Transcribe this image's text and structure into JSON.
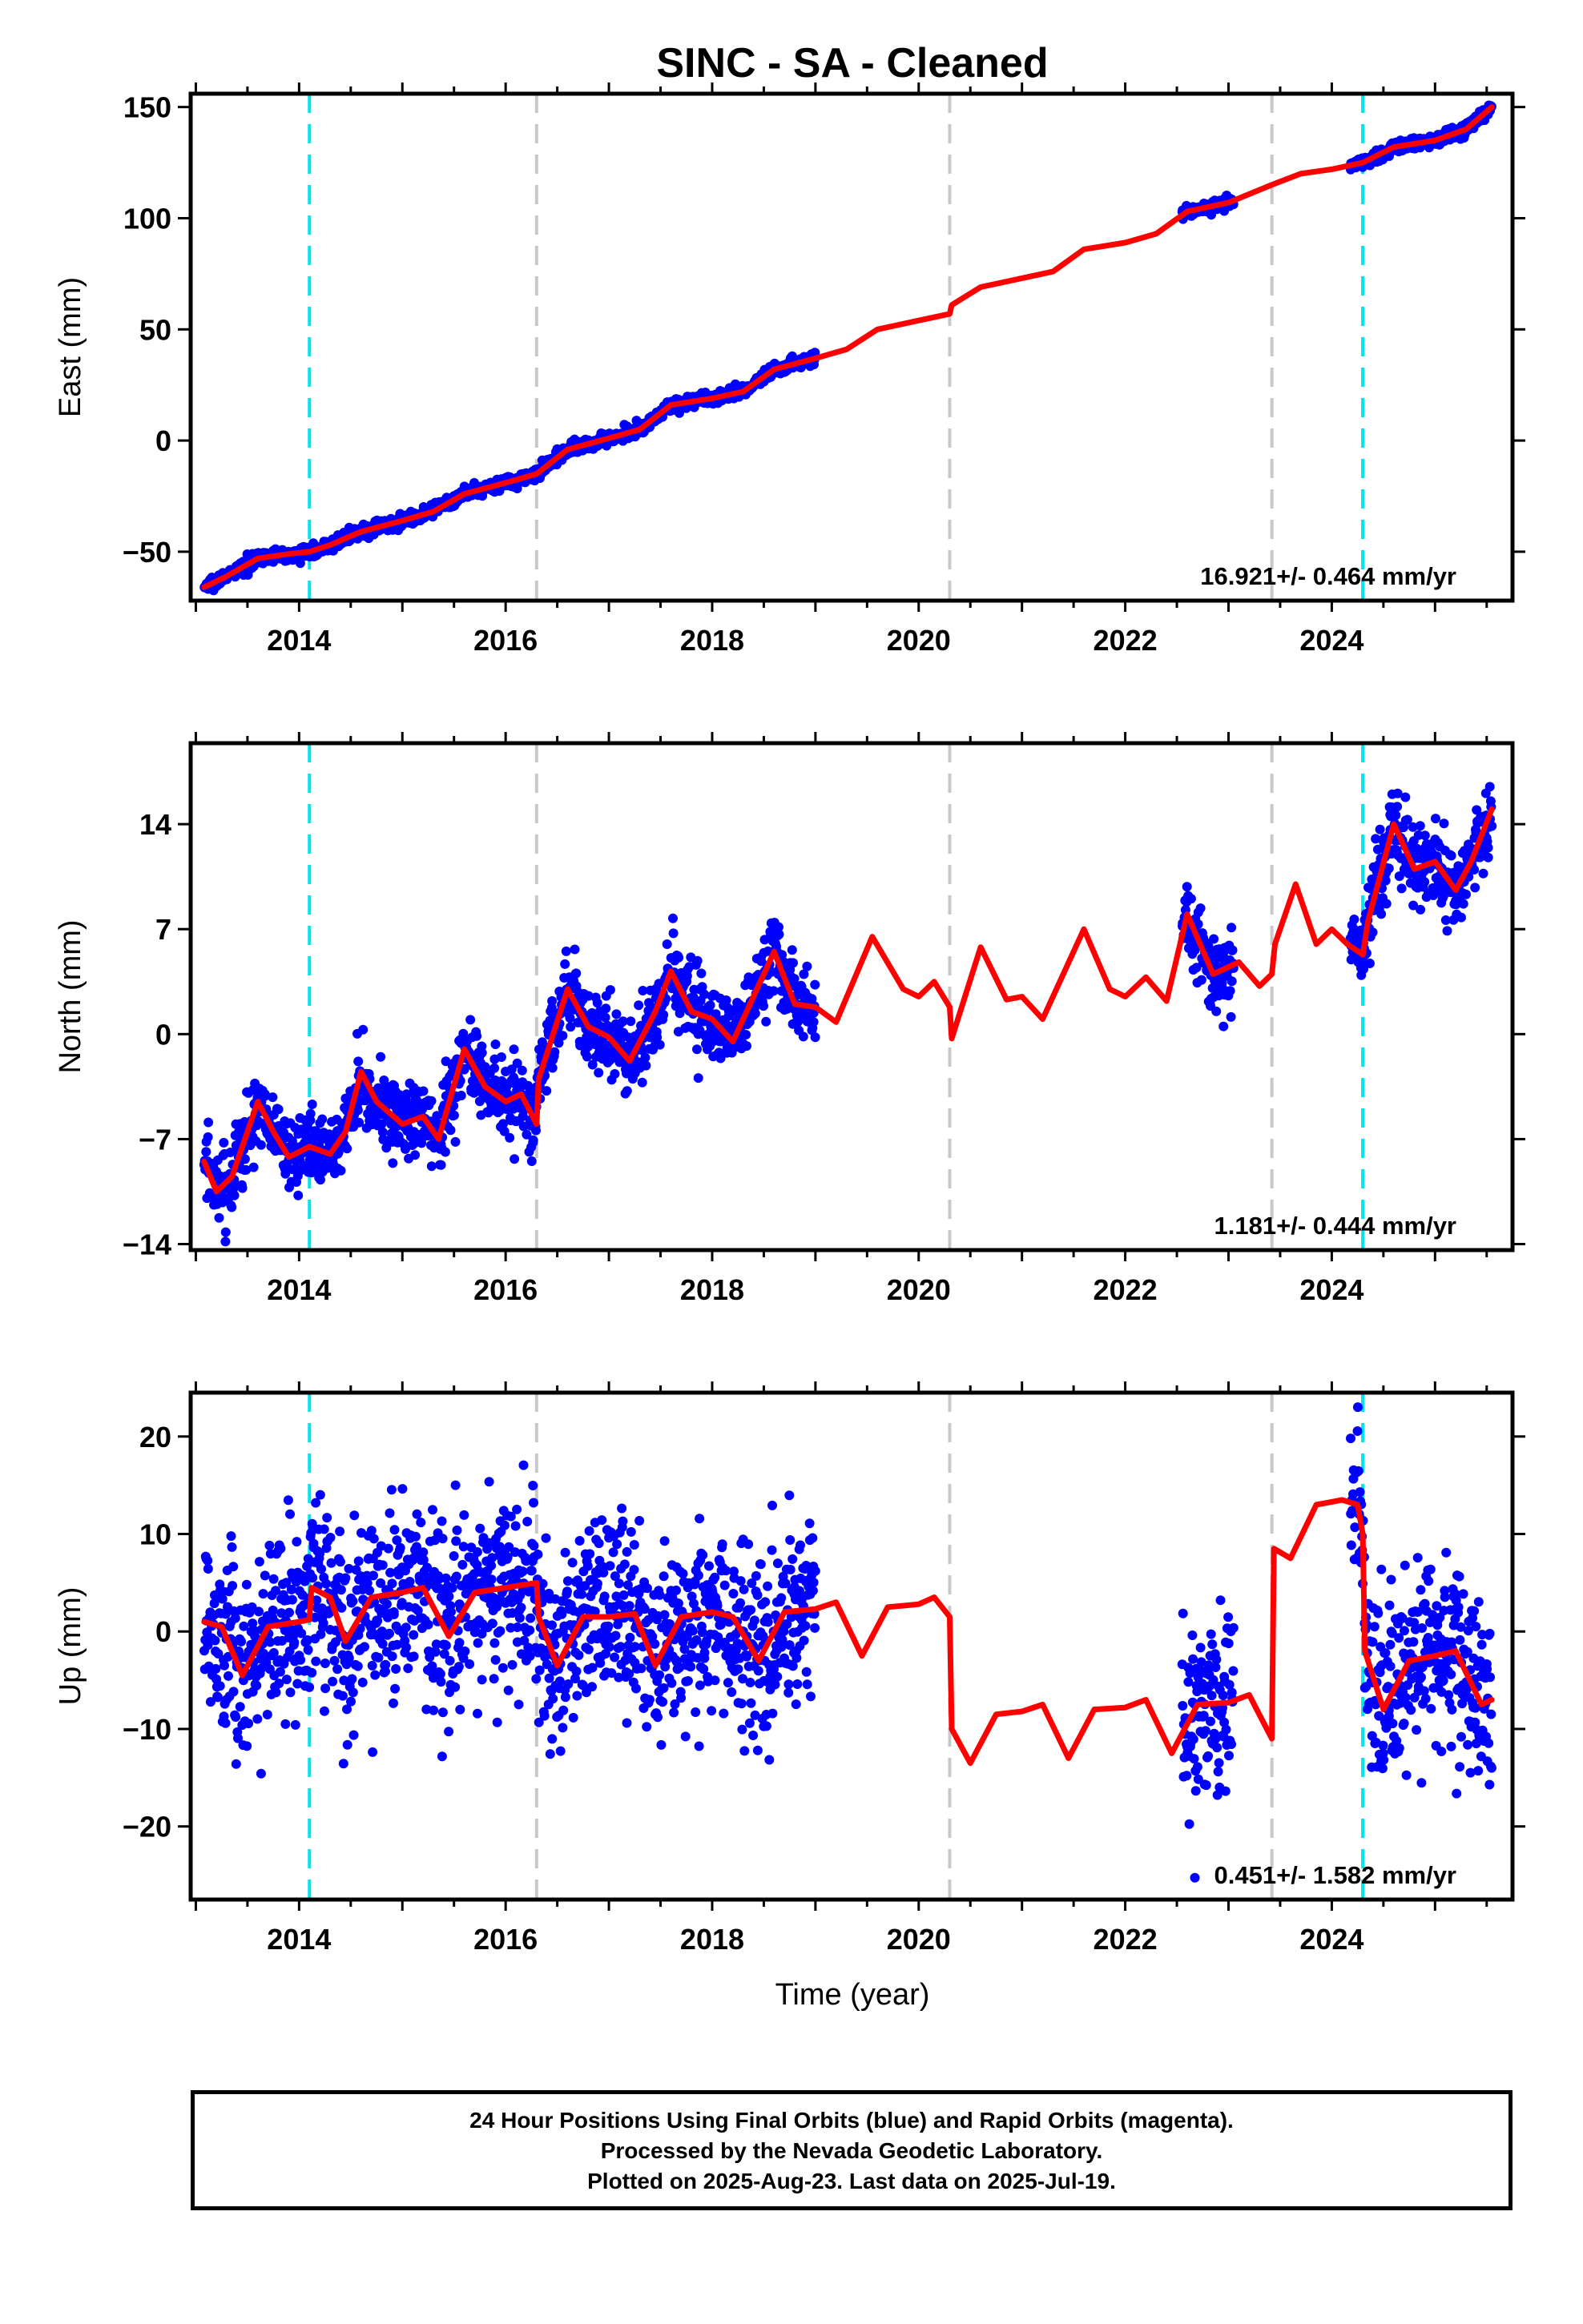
{
  "title": "SINC  - SA - Cleaned",
  "xlabel": "Time (year)",
  "footer": {
    "line1": "24 Hour Positions Using Final Orbits (blue) and Rapid Orbits (magenta).",
    "line2": "Processed by the Nevada Geodetic Laboratory.",
    "line3": "Plotted on 2025-Aug-23. Last data on 2025-Jul-19."
  },
  "colors": {
    "observed": "#0000ff",
    "model": "#ff0000",
    "equipment_change": "#c8c8c8",
    "earthquake": "#00e5ee"
  },
  "chart_data": [
    {
      "type": "scatter",
      "panel": "east",
      "ylabel": "East (mm)",
      "xlim": [
        2012.95,
        2025.75
      ],
      "ylim": [
        -72,
        156
      ],
      "xticks": [
        2014,
        2016,
        2018,
        2020,
        2022,
        2024
      ],
      "yticks": [
        -50,
        0,
        50,
        100,
        150
      ],
      "rate_label": "16.921+/- 0.464 mm/yr",
      "vertical_lines": [
        {
          "x": 2014.1,
          "kind": "earthquake"
        },
        {
          "x": 2016.3,
          "kind": "equipment_change"
        },
        {
          "x": 2020.3,
          "kind": "equipment_change"
        },
        {
          "x": 2023.42,
          "kind": "equipment_change"
        },
        {
          "x": 2024.3,
          "kind": "earthquake"
        }
      ],
      "data_segments": [
        [
          2013.08,
          2019.0
        ],
        [
          2022.55,
          2023.05
        ],
        [
          2024.18,
          2025.55
        ]
      ],
      "scatter_sd": 1.4,
      "model": [
        [
          2013.08,
          -66
        ],
        [
          2013.3,
          -61
        ],
        [
          2013.6,
          -53
        ],
        [
          2013.9,
          -51
        ],
        [
          2014.1,
          -50
        ],
        [
          2014.3,
          -47
        ],
        [
          2014.6,
          -41
        ],
        [
          2015.0,
          -36
        ],
        [
          2015.3,
          -32
        ],
        [
          2015.6,
          -24
        ],
        [
          2016.0,
          -19
        ],
        [
          2016.3,
          -15
        ],
        [
          2016.6,
          -4
        ],
        [
          2017.0,
          1
        ],
        [
          2017.3,
          5
        ],
        [
          2017.6,
          16
        ],
        [
          2018.0,
          19
        ],
        [
          2018.3,
          22
        ],
        [
          2018.6,
          32
        ],
        [
          2019.0,
          37
        ],
        [
          2019.3,
          41
        ],
        [
          2019.6,
          50
        ],
        [
          2020.0,
          54
        ],
        [
          2020.3,
          57
        ],
        [
          2020.32,
          61
        ],
        [
          2020.6,
          69
        ],
        [
          2021.0,
          73
        ],
        [
          2021.3,
          76
        ],
        [
          2021.6,
          86
        ],
        [
          2022.0,
          89
        ],
        [
          2022.3,
          93
        ],
        [
          2022.6,
          103
        ],
        [
          2023.0,
          107
        ],
        [
          2023.42,
          115
        ],
        [
          2023.7,
          120
        ],
        [
          2024.0,
          122
        ],
        [
          2024.3,
          125
        ],
        [
          2024.6,
          132
        ],
        [
          2025.0,
          135
        ],
        [
          2025.3,
          140
        ],
        [
          2025.55,
          150
        ]
      ]
    },
    {
      "type": "scatter",
      "panel": "north",
      "ylabel": "North (mm)",
      "xlim": [
        2012.95,
        2025.75
      ],
      "ylim": [
        -14.4,
        19.4
      ],
      "xticks": [
        2014,
        2016,
        2018,
        2020,
        2022,
        2024
      ],
      "yticks": [
        -14,
        -7,
        0,
        7,
        14
      ],
      "rate_label": "1.181+/- 0.444 mm/yr",
      "vertical_lines": [
        {
          "x": 2014.1,
          "kind": "earthquake"
        },
        {
          "x": 2016.3,
          "kind": "equipment_change"
        },
        {
          "x": 2020.3,
          "kind": "equipment_change"
        },
        {
          "x": 2023.42,
          "kind": "equipment_change"
        },
        {
          "x": 2024.3,
          "kind": "earthquake"
        }
      ],
      "data_segments": [
        [
          2013.08,
          2019.0
        ],
        [
          2022.55,
          2023.05
        ],
        [
          2024.18,
          2025.55
        ]
      ],
      "scatter_sd": 1.3,
      "model": [
        [
          2013.08,
          -8.5
        ],
        [
          2013.2,
          -10.5
        ],
        [
          2013.35,
          -9.5
        ],
        [
          2013.6,
          -4.5
        ],
        [
          2013.75,
          -6.5
        ],
        [
          2013.9,
          -8.2
        ],
        [
          2014.1,
          -7.5
        ],
        [
          2014.3,
          -8.0
        ],
        [
          2014.45,
          -6.5
        ],
        [
          2014.6,
          -2.5
        ],
        [
          2014.75,
          -4.5
        ],
        [
          2015.0,
          -6.0
        ],
        [
          2015.2,
          -5.5
        ],
        [
          2015.35,
          -7.0
        ],
        [
          2015.6,
          -1.0
        ],
        [
          2015.8,
          -3.5
        ],
        [
          2016.0,
          -4.5
        ],
        [
          2016.15,
          -4.0
        ],
        [
          2016.3,
          -6.0
        ],
        [
          2016.32,
          -3.0
        ],
        [
          2016.6,
          3.0
        ],
        [
          2016.8,
          0.5
        ],
        [
          2017.0,
          -0.2
        ],
        [
          2017.2,
          -1.8
        ],
        [
          2017.45,
          1.5
        ],
        [
          2017.6,
          4.2
        ],
        [
          2017.8,
          1.5
        ],
        [
          2018.0,
          1.0
        ],
        [
          2018.2,
          -0.5
        ],
        [
          2018.4,
          2.5
        ],
        [
          2018.6,
          5.5
        ],
        [
          2018.8,
          2.0
        ],
        [
          2019.0,
          1.8
        ],
        [
          2019.2,
          0.8
        ],
        [
          2019.55,
          6.5
        ],
        [
          2019.85,
          3.0
        ],
        [
          2020.0,
          2.5
        ],
        [
          2020.15,
          3.5
        ],
        [
          2020.3,
          1.8
        ],
        [
          2020.32,
          -0.3
        ],
        [
          2020.6,
          5.8
        ],
        [
          2020.85,
          2.3
        ],
        [
          2021.0,
          2.5
        ],
        [
          2021.2,
          1.0
        ],
        [
          2021.6,
          7.0
        ],
        [
          2021.85,
          3.0
        ],
        [
          2022.0,
          2.5
        ],
        [
          2022.2,
          3.8
        ],
        [
          2022.4,
          2.2
        ],
        [
          2022.6,
          8.0
        ],
        [
          2022.85,
          4.0
        ],
        [
          2023.1,
          4.8
        ],
        [
          2023.3,
          3.2
        ],
        [
          2023.42,
          4.0
        ],
        [
          2023.45,
          6.0
        ],
        [
          2023.65,
          10.0
        ],
        [
          2023.85,
          6.0
        ],
        [
          2024.0,
          7.0
        ],
        [
          2024.15,
          6.0
        ],
        [
          2024.3,
          5.3
        ],
        [
          2024.35,
          7.5
        ],
        [
          2024.6,
          14.0
        ],
        [
          2024.8,
          11.0
        ],
        [
          2025.0,
          11.5
        ],
        [
          2025.2,
          9.6
        ],
        [
          2025.35,
          11.5
        ],
        [
          2025.55,
          15.0
        ]
      ]
    },
    {
      "type": "scatter",
      "panel": "up",
      "ylabel": "Up (mm)",
      "xlim": [
        2012.95,
        2025.75
      ],
      "ylim": [
        -27.5,
        24.5
      ],
      "xticks": [
        2014,
        2016,
        2018,
        2020,
        2022,
        2024
      ],
      "yticks": [
        -20,
        -10,
        0,
        10,
        20
      ],
      "rate_label": "0.451+/- 1.582 mm/yr",
      "vertical_lines": [
        {
          "x": 2014.1,
          "kind": "earthquake"
        },
        {
          "x": 2016.3,
          "kind": "equipment_change"
        },
        {
          "x": 2020.3,
          "kind": "equipment_change"
        },
        {
          "x": 2023.42,
          "kind": "equipment_change"
        },
        {
          "x": 2024.3,
          "kind": "earthquake"
        }
      ],
      "data_segments": [
        [
          2013.08,
          2019.0
        ],
        [
          2022.55,
          2023.05
        ],
        [
          2024.18,
          2025.55
        ]
      ],
      "scatter_sd": 4.8,
      "model": [
        [
          2013.08,
          1.0
        ],
        [
          2013.25,
          0.5
        ],
        [
          2013.45,
          -4.5
        ],
        [
          2013.7,
          0.5
        ],
        [
          2014.0,
          1.0
        ],
        [
          2014.1,
          1.2
        ],
        [
          2014.12,
          4.5
        ],
        [
          2014.3,
          3.5
        ],
        [
          2014.45,
          -1.0
        ],
        [
          2014.7,
          3.5
        ],
        [
          2015.0,
          4.0
        ],
        [
          2015.2,
          4.5
        ],
        [
          2015.45,
          -0.5
        ],
        [
          2015.7,
          4.0
        ],
        [
          2016.0,
          4.5
        ],
        [
          2016.3,
          5.0
        ],
        [
          2016.32,
          1.5
        ],
        [
          2016.5,
          -3.5
        ],
        [
          2016.75,
          1.5
        ],
        [
          2017.0,
          1.5
        ],
        [
          2017.25,
          1.8
        ],
        [
          2017.45,
          -3.5
        ],
        [
          2017.7,
          1.5
        ],
        [
          2018.0,
          2.0
        ],
        [
          2018.2,
          1.5
        ],
        [
          2018.45,
          -3.0
        ],
        [
          2018.7,
          2.0
        ],
        [
          2019.0,
          2.3
        ],
        [
          2019.2,
          3.0
        ],
        [
          2019.45,
          -2.5
        ],
        [
          2019.7,
          2.5
        ],
        [
          2020.0,
          2.8
        ],
        [
          2020.15,
          3.5
        ],
        [
          2020.3,
          1.5
        ],
        [
          2020.32,
          -10.0
        ],
        [
          2020.5,
          -13.5
        ],
        [
          2020.75,
          -8.5
        ],
        [
          2021.0,
          -8.2
        ],
        [
          2021.2,
          -7.5
        ],
        [
          2021.45,
          -13.0
        ],
        [
          2021.7,
          -8.0
        ],
        [
          2022.0,
          -7.8
        ],
        [
          2022.2,
          -7.0
        ],
        [
          2022.45,
          -12.5
        ],
        [
          2022.7,
          -7.5
        ],
        [
          2023.0,
          -7.3
        ],
        [
          2023.2,
          -6.5
        ],
        [
          2023.42,
          -11.0
        ],
        [
          2023.44,
          8.5
        ],
        [
          2023.6,
          7.5
        ],
        [
          2023.85,
          13.0
        ],
        [
          2024.1,
          13.5
        ],
        [
          2024.25,
          13.0
        ],
        [
          2024.3,
          10.0
        ],
        [
          2024.32,
          -2.0
        ],
        [
          2024.5,
          -8.0
        ],
        [
          2024.75,
          -3.0
        ],
        [
          2025.0,
          -2.5
        ],
        [
          2025.2,
          -2.0
        ],
        [
          2025.45,
          -7.5
        ],
        [
          2025.55,
          -7.0
        ]
      ]
    }
  ]
}
